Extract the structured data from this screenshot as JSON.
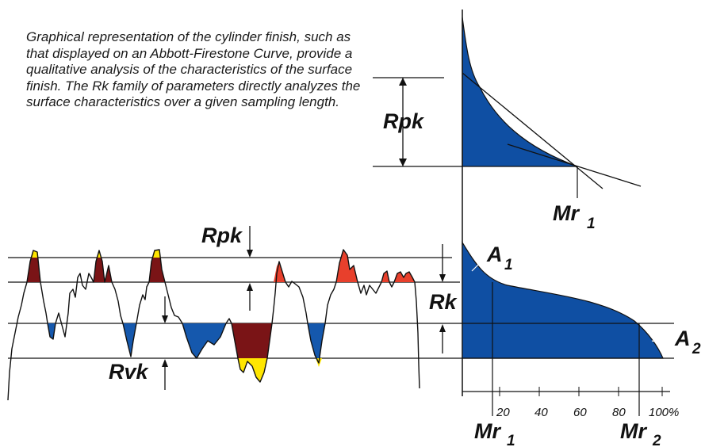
{
  "description_text": "Graphical representation of the cylinder finish, such as that displayed on an Abbott-Firestone Curve, provide a qualitative analysis of the characteristics of the surface finish.  The Rk family of parameters directly analyzes the surface characteristics over a given sampling length.",
  "labels": {
    "rpk_curve": "Rpk",
    "mr1_curve_main": "Mr",
    "mr1_curve_sub": "1",
    "rpk_profile": "Rpk",
    "rk": "Rk",
    "rvk": "Rvk",
    "a1_main": "A",
    "a1_sub": "1",
    "a2_main": "A",
    "a2_sub": "2",
    "mr1_axis_main": "Mr",
    "mr1_axis_sub": "1",
    "mr2_axis_main": "Mr",
    "mr2_axis_sub": "2"
  },
  "axis_ticks": [
    "20",
    "40",
    "60",
    "80",
    "100%"
  ],
  "colors": {
    "curve_fill": "#0f4fa3",
    "peak_dark": "#7a1416",
    "peak_red": "#e8402c",
    "peak_yellow": "#ffe600",
    "valley_blue": "#1558ad",
    "line": "#111111"
  }
}
